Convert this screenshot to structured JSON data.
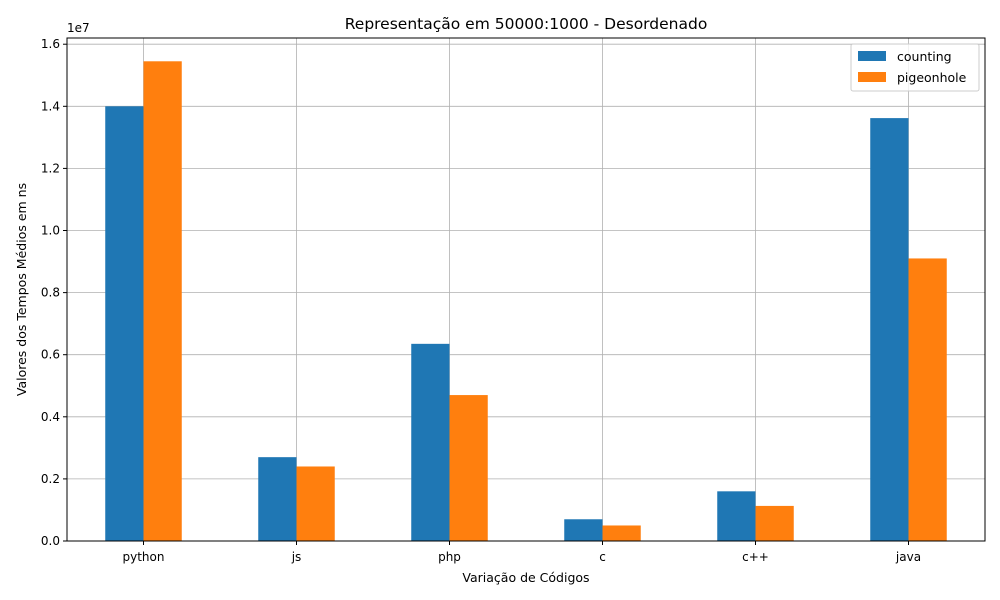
{
  "chart_data": {
    "type": "bar",
    "title": "Representação em 50000:1000 - Desordenado",
    "xlabel": "Variação de Códigos",
    "ylabel": "Valores dos Tempos Médios em ns",
    "offset_text": "1e7",
    "categories": [
      "python",
      "js",
      "php",
      "c",
      "c++",
      "java"
    ],
    "series": [
      {
        "name": "counting",
        "color": "#1f77b4",
        "values": [
          14000000,
          2700000,
          6350000,
          700000,
          1600000,
          13620000
        ]
      },
      {
        "name": "pigeonhole",
        "color": "#ff7f0e",
        "values": [
          15450000,
          2400000,
          4700000,
          500000,
          1130000,
          9100000
        ]
      }
    ],
    "ylim": [
      0,
      16200000
    ],
    "yticks": [
      0,
      2000000,
      4000000,
      6000000,
      8000000,
      10000000,
      12000000,
      14000000,
      16000000
    ],
    "ytick_labels": [
      "0.0",
      "0.2",
      "0.4",
      "0.6",
      "0.8",
      "1.0",
      "1.2",
      "1.4",
      "1.6"
    ],
    "grid": true,
    "legend": "top-right"
  }
}
